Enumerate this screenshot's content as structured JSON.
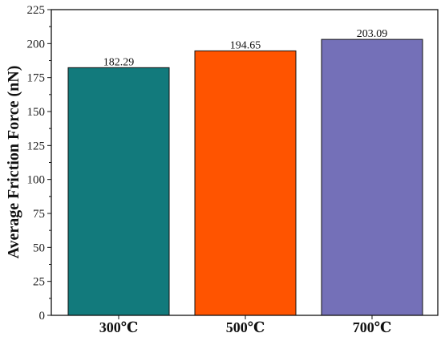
{
  "chart_data": {
    "type": "bar",
    "title": "",
    "xlabel": "",
    "ylabel": "Average Friction Force (nN)",
    "categories": [
      "300℃",
      "500℃",
      "700℃"
    ],
    "values": [
      182.29,
      194.65,
      203.09
    ],
    "data_labels": [
      "182.29",
      "194.65",
      "203.09"
    ],
    "bar_colors": [
      "#127a7c",
      "#ff5400",
      "#7470b8"
    ],
    "ylim": [
      0,
      225
    ],
    "yticks": [
      0,
      25,
      50,
      75,
      100,
      125,
      150,
      175,
      200,
      225
    ],
    "grid": false,
    "legend": "none"
  }
}
